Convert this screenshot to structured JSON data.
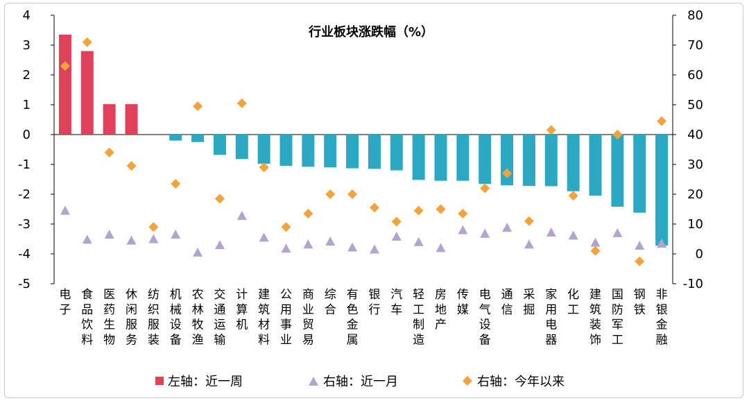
{
  "chart_data": {
    "type": "bar",
    "title": "行业板块涨跌幅（%）",
    "categories": [
      "电子",
      "食品饮料",
      "医药生物",
      "休闲服务",
      "纺织服装",
      "机械设备",
      "农林牧渔",
      "交通运输",
      "计算机",
      "建筑材料",
      "公用事业",
      "商业贸易",
      "综合",
      "有色金属",
      "银行",
      "汽车",
      "轻工制造",
      "房地产",
      "传媒",
      "电气设备",
      "通信",
      "采掘",
      "家用电器",
      "化工",
      "建筑装饰",
      "国防军工",
      "钢铁",
      "非银金融"
    ],
    "series": [
      {
        "name": "左轴：近一周",
        "axis": "left",
        "mark": "bar",
        "values": [
          3.35,
          2.8,
          1.02,
          1.02,
          0,
          -0.2,
          -0.25,
          -0.68,
          -0.82,
          -0.98,
          -1.05,
          -1.08,
          -1.1,
          -1.13,
          -1.15,
          -1.2,
          -1.52,
          -1.55,
          -1.55,
          -1.65,
          -1.7,
          -1.72,
          -1.73,
          -1.9,
          -2.05,
          -2.42,
          -2.62,
          -3.72
        ]
      },
      {
        "name": "右轴：近一月",
        "axis": "right",
        "mark": "triangle",
        "values": [
          14.5,
          4.8,
          6.5,
          4.5,
          5,
          6.5,
          0.5,
          3,
          12.8,
          5.5,
          1.8,
          3.2,
          4.2,
          2.2,
          1.5,
          5.8,
          4,
          2,
          8,
          6.8,
          8.8,
          3.2,
          7.2,
          6.2,
          3.8,
          7,
          2.8,
          3.5
        ]
      },
      {
        "name": "右轴：今年以来",
        "axis": "right",
        "mark": "diamond",
        "values": [
          63,
          71,
          34,
          29.5,
          9,
          23.5,
          49.5,
          18.5,
          50.5,
          29,
          9,
          13.5,
          20,
          20,
          15.5,
          10.8,
          14.5,
          15,
          13.5,
          22,
          27,
          11,
          41.5,
          19.5,
          1,
          40,
          -2.5,
          44.5
        ]
      }
    ],
    "ylim_left": [
      -5,
      4
    ],
    "yticks_left": [
      "4",
      "3",
      "2",
      "1",
      "0",
      "-1",
      "-2",
      "-3",
      "-4",
      "-5"
    ],
    "ylim_right": [
      -10,
      80
    ],
    "yticks_right": [
      "80",
      "70",
      "60",
      "50",
      "40",
      "30",
      "20",
      "10",
      "0",
      "-10"
    ],
    "legend_position": "bottom",
    "grid": false
  },
  "colors": {
    "bar_positive": "#e0405a",
    "bar_negative": "#2aa8c4",
    "triangle": "#b3a3cf",
    "diamond": "#f4a23a"
  }
}
